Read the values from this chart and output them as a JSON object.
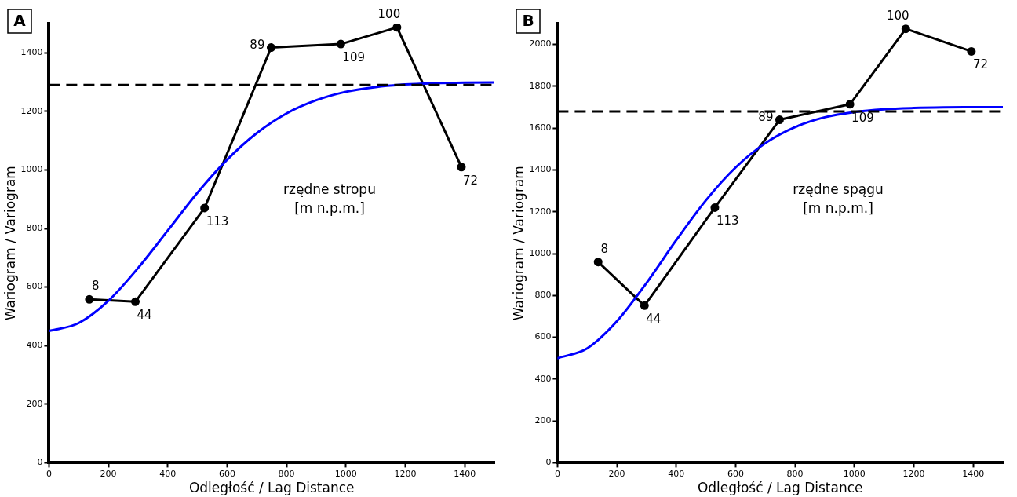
{
  "chart_data": [
    {
      "type": "line",
      "title": "A",
      "xlabel": "Odległość / Lag Distance",
      "ylabel": "Wariogram / Variogram",
      "xlim": [
        0,
        1500
      ],
      "xticks": [
        0,
        200,
        400,
        600,
        800,
        1000,
        1200,
        1400
      ],
      "ylim": [
        0,
        1500
      ],
      "yticks": [
        0,
        200,
        400,
        600,
        800,
        1000,
        1200,
        1400
      ],
      "grid": false,
      "legend": false,
      "series": [
        {
          "color": "#0000ff",
          "marker": "none",
          "x": [
            0,
            100,
            200,
            300,
            400,
            500,
            600,
            700,
            800,
            900,
            1000,
            1100,
            1200,
            1300,
            1400,
            1500
          ],
          "values": [
            450,
            477,
            553,
            665,
            793,
            922,
            1035,
            1126,
            1193,
            1238,
            1267,
            1283,
            1292,
            1296,
            1298,
            1299
          ]
        },
        {
          "color": "#000000",
          "marker": "circle",
          "x": [
            136,
            291,
            524,
            748,
            983,
            1172,
            1389
          ],
          "values": [
            558,
            550,
            870,
            1418,
            1430,
            1487,
            1010
          ]
        }
      ],
      "ref_lines": [
        {
          "axis": "y",
          "value": 1290,
          "color": "#000000",
          "line_style": "dashed"
        }
      ],
      "annotations": [
        "rzędne stropu",
        "[m n.p.m.]",
        {
          "text": "8",
          "x": 136,
          "y": 558
        },
        {
          "text": "44",
          "x": 291,
          "y": 550
        },
        {
          "text": "113",
          "x": 524,
          "y": 870
        },
        {
          "text": "89",
          "x": 748,
          "y": 1418
        },
        {
          "text": "109",
          "x": 983,
          "y": 1430
        },
        {
          "text": "100",
          "x": 1172,
          "y": 1487
        },
        {
          "text": "72",
          "x": 1389,
          "y": 1010
        }
      ]
    },
    {
      "type": "line",
      "title": "B",
      "xlabel": "Odległość / Lag Distance",
      "ylabel": "Wariogram / Variogram",
      "xlim": [
        0,
        1500
      ],
      "xticks": [
        0,
        200,
        400,
        600,
        800,
        1000,
        1200,
        1400
      ],
      "ylim": [
        0,
        2100
      ],
      "yticks": [
        0,
        200,
        400,
        600,
        800,
        1000,
        1200,
        1400,
        1600,
        1800,
        2000
      ],
      "grid": false,
      "legend": false,
      "series": [
        {
          "color": "#0000ff",
          "marker": "none",
          "x": [
            0,
            100,
            200,
            300,
            400,
            500,
            600,
            700,
            800,
            900,
            1000,
            1100,
            1200,
            1300,
            1400,
            1500
          ],
          "values": [
            500,
            547,
            676,
            860,
            1064,
            1255,
            1412,
            1528,
            1605,
            1652,
            1677,
            1690,
            1696,
            1699,
            1700,
            1700
          ]
        },
        {
          "color": "#000000",
          "marker": "circle",
          "x": [
            137,
            293,
            530,
            748,
            985,
            1173,
            1394
          ],
          "values": [
            960,
            751,
            1220,
            1640,
            1714,
            2075,
            1967
          ]
        }
      ],
      "ref_lines": [
        {
          "axis": "y",
          "value": 1680,
          "color": "#000000",
          "line_style": "dashed"
        }
      ],
      "annotations": [
        "rzędne spągu",
        "[m n.p.m.]",
        {
          "text": "8",
          "x": 137,
          "y": 960
        },
        {
          "text": "44",
          "x": 293,
          "y": 751
        },
        {
          "text": "113",
          "x": 530,
          "y": 1220
        },
        {
          "text": "89",
          "x": 748,
          "y": 1640
        },
        {
          "text": "109",
          "x": 985,
          "y": 1714
        },
        {
          "text": "100",
          "x": 1173,
          "y": 2075
        },
        {
          "text": "72",
          "x": 1394,
          "y": 1967
        }
      ]
    }
  ]
}
